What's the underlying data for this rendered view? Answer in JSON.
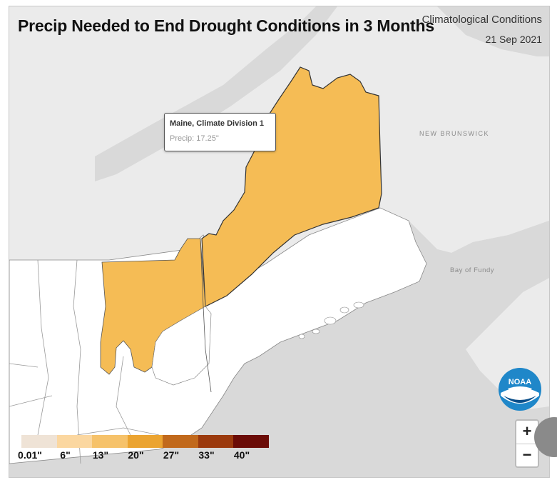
{
  "title": "Precip Needed to End Drought Conditions in 3 Months",
  "subtitle": "Climatological Conditions",
  "date": "21 Sep 2021",
  "tooltip": {
    "region": "Maine, Climate Division 1",
    "value_text": "Precip: 17.25\""
  },
  "map_labels": {
    "new_brunswick": "NEW BRUNSWICK",
    "bay_of_fundy": "Bay of Fundy"
  },
  "legend": {
    "labels": [
      "0.01\"",
      "6\"",
      "13\"",
      "20\"",
      "27\"",
      "33\"",
      "40\""
    ],
    "colors": [
      "#efe3d6",
      "#fbd7a0",
      "#f6c26a",
      "#eba431",
      "#c1691c",
      "#9b3a0e",
      "#6b0c07"
    ]
  },
  "colors": {
    "division_fill": "#f5bc55",
    "land": "#ffffff",
    "water": "#d9d9d9",
    "foreign_land": "#ebebeb"
  },
  "zoom": {
    "in_label": "+",
    "out_label": "−"
  },
  "logo": {
    "name": "noaa-logo",
    "text": "NOAA"
  }
}
